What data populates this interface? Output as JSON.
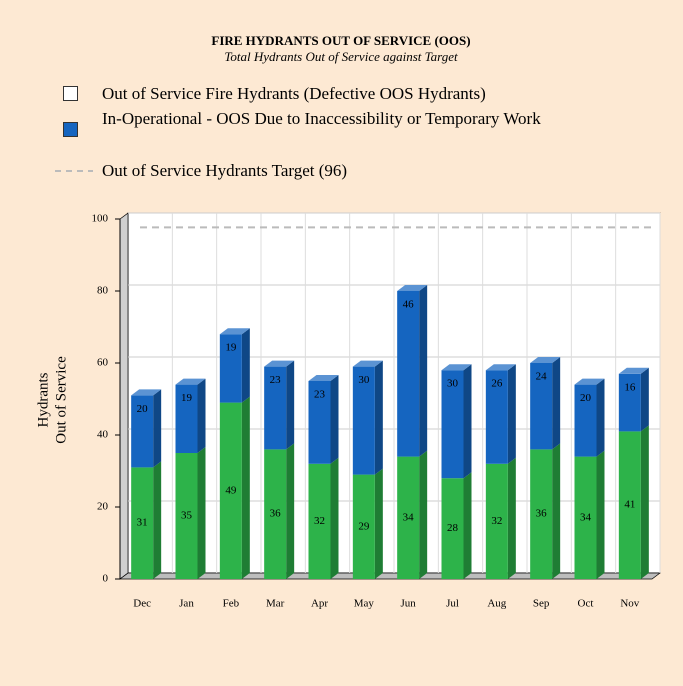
{
  "chart_data": {
    "type": "bar3d_stacked",
    "title": "FIRE HYDRANTS OUT OF SERVICE (OOS)",
    "subtitle": "Total Hydrants Out of Service against Target",
    "ylabel": [
      "Hydrants",
      "Out of Service"
    ],
    "categories": [
      "Dec",
      "Jan",
      "Feb",
      "Mar",
      "Apr",
      "May",
      "Jun",
      "Jul",
      "Aug",
      "Sep",
      "Oct",
      "Nov"
    ],
    "series": [
      {
        "name": "Out of Service Fire Hydrants (Defective OOS Hydrants)",
        "color": "#2db34a",
        "legend_swatch": "#ffffff",
        "values": [
          31,
          35,
          49,
          36,
          32,
          29,
          34,
          28,
          32,
          36,
          34,
          41
        ]
      },
      {
        "name": "In-Operational - OOS Due to Inaccessibility or Temporary Work",
        "color": "#1565c0",
        "legend_swatch": "#1565c0",
        "values": [
          20,
          19,
          19,
          23,
          23,
          30,
          46,
          30,
          26,
          24,
          20,
          16
        ]
      }
    ],
    "target": {
      "name": "Out of Service Hydrants Target (96)",
      "value": 96,
      "color": "#bbbbbb"
    },
    "ylim": [
      0,
      100
    ],
    "yticks": [
      0,
      20,
      40,
      60,
      80,
      100
    ],
    "grid": true
  }
}
